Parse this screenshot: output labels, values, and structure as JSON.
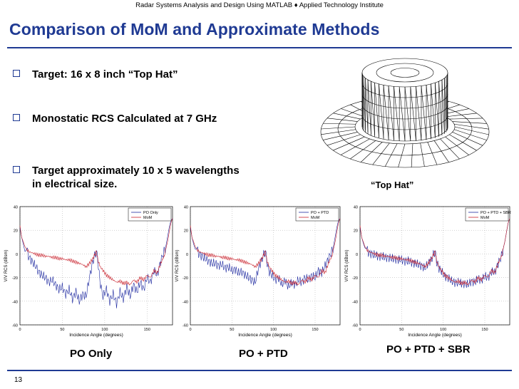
{
  "header": "Radar Systems Analysis and Design Using MATLAB ♦ Applied Technology Institute",
  "title": "Comparison of MoM and Approximate Methods",
  "bullets": [
    "Target: 16 x 8 inch “Top Hat”",
    "Monostatic RCS Calculated at 7 GHz",
    "Target approximately 10 x 5 wavelengths in electrical size."
  ],
  "tophat_caption": "“Top Hat”",
  "page_number": "13",
  "colors": {
    "title": "#1f3a93",
    "po": "#1f2aa0",
    "mom": "#c8202a"
  },
  "plot_captions": [
    "PO Only",
    "PO + PTD",
    "PO + PTD + SBR"
  ],
  "chart_data": [
    {
      "type": "line",
      "xlabel": "Incidence Angle (degrees)",
      "ylabel": "V/V RCS (dBsm)",
      "xlim": [
        0,
        180
      ],
      "ylim": [
        -60,
        40
      ],
      "xticks": [
        0,
        50,
        100,
        150
      ],
      "yticks": [
        40,
        20,
        0,
        -20,
        -40,
        -60
      ],
      "legend_position": "top-right",
      "series": [
        {
          "name": "PO Only",
          "color": "#1f2aa0",
          "x": [
            0,
            2,
            4,
            6,
            8,
            10,
            14,
            18,
            22,
            26,
            30,
            34,
            38,
            42,
            46,
            50,
            54,
            58,
            62,
            66,
            70,
            74,
            78,
            82,
            86,
            88,
            90,
            92,
            94,
            98,
            102,
            106,
            110,
            114,
            118,
            122,
            126,
            130,
            134,
            138,
            142,
            146,
            150,
            154,
            158,
            162,
            166,
            170,
            172,
            174,
            176,
            178,
            180
          ],
          "y": [
            22,
            14,
            8,
            2,
            4,
            -2,
            -6,
            -10,
            -15,
            -18,
            -20,
            -24,
            -22,
            -26,
            -30,
            -28,
            -34,
            -30,
            -38,
            -32,
            -40,
            -34,
            -36,
            -20,
            -6,
            -2,
            2,
            -6,
            -22,
            -36,
            -30,
            -40,
            -34,
            -42,
            -32,
            -38,
            -28,
            -36,
            -26,
            -32,
            -24,
            -30,
            -20,
            -24,
            -14,
            -18,
            -6,
            2,
            6,
            14,
            22,
            28,
            30
          ]
        },
        {
          "name": "MoM",
          "color": "#c8202a",
          "x": [
            0,
            2,
            4,
            6,
            8,
            10,
            14,
            18,
            22,
            26,
            30,
            34,
            38,
            42,
            46,
            50,
            54,
            58,
            62,
            66,
            70,
            74,
            78,
            82,
            86,
            88,
            90,
            92,
            94,
            98,
            102,
            106,
            110,
            114,
            118,
            122,
            126,
            130,
            134,
            138,
            142,
            146,
            150,
            154,
            158,
            162,
            166,
            170,
            172,
            174,
            176,
            178,
            180
          ],
          "y": [
            24,
            14,
            10,
            6,
            4,
            2,
            1,
            0,
            -1,
            -1,
            -2,
            -2,
            -3,
            -3,
            -4,
            -4,
            -5,
            -5,
            -6,
            -7,
            -8,
            -9,
            -11,
            -8,
            -4,
            -1,
            2,
            -5,
            -10,
            -14,
            -18,
            -20,
            -22,
            -24,
            -23,
            -25,
            -24,
            -26,
            -22,
            -24,
            -20,
            -22,
            -18,
            -20,
            -14,
            -16,
            -8,
            -2,
            4,
            10,
            18,
            26,
            30
          ]
        }
      ]
    },
    {
      "type": "line",
      "xlabel": "Incidence Angle (degrees)",
      "ylabel": "V/V RCS (dBsm)",
      "xlim": [
        0,
        180
      ],
      "ylim": [
        -60,
        40
      ],
      "xticks": [
        0,
        50,
        100,
        150
      ],
      "yticks": [
        40,
        20,
        0,
        -20,
        -40,
        -60
      ],
      "legend_position": "top-right",
      "series": [
        {
          "name": "PO + PTD",
          "color": "#1f2aa0",
          "x": [
            0,
            2,
            4,
            6,
            8,
            10,
            14,
            18,
            22,
            26,
            30,
            34,
            38,
            42,
            46,
            50,
            54,
            58,
            62,
            66,
            70,
            74,
            78,
            82,
            86,
            88,
            90,
            92,
            94,
            98,
            102,
            106,
            110,
            114,
            118,
            122,
            126,
            130,
            134,
            138,
            142,
            146,
            150,
            154,
            158,
            162,
            166,
            170,
            172,
            174,
            176,
            178,
            180
          ],
          "y": [
            22,
            14,
            8,
            4,
            4,
            0,
            -2,
            -4,
            -6,
            -8,
            -8,
            -10,
            -9,
            -12,
            -11,
            -14,
            -13,
            -16,
            -15,
            -18,
            -20,
            -22,
            -24,
            -12,
            -4,
            -1,
            2,
            -6,
            -14,
            -18,
            -22,
            -20,
            -26,
            -22,
            -28,
            -24,
            -26,
            -22,
            -24,
            -20,
            -22,
            -18,
            -20,
            -14,
            -16,
            -10,
            -4,
            2,
            6,
            14,
            22,
            28,
            30
          ]
        },
        {
          "name": "MoM",
          "color": "#c8202a",
          "x": [
            0,
            2,
            4,
            6,
            8,
            10,
            14,
            18,
            22,
            26,
            30,
            34,
            38,
            42,
            46,
            50,
            54,
            58,
            62,
            66,
            70,
            74,
            78,
            82,
            86,
            88,
            90,
            92,
            94,
            98,
            102,
            106,
            110,
            114,
            118,
            122,
            126,
            130,
            134,
            138,
            142,
            146,
            150,
            154,
            158,
            162,
            166,
            170,
            172,
            174,
            176,
            178,
            180
          ],
          "y": [
            24,
            14,
            10,
            6,
            4,
            2,
            1,
            0,
            -1,
            -1,
            -2,
            -2,
            -3,
            -3,
            -4,
            -4,
            -5,
            -5,
            -6,
            -7,
            -8,
            -9,
            -11,
            -8,
            -4,
            -1,
            2,
            -5,
            -10,
            -14,
            -18,
            -20,
            -22,
            -24,
            -23,
            -25,
            -24,
            -26,
            -22,
            -24,
            -20,
            -22,
            -18,
            -20,
            -14,
            -16,
            -8,
            -2,
            4,
            10,
            18,
            26,
            30
          ]
        }
      ]
    },
    {
      "type": "line",
      "xlabel": "Incidence Angle (degrees)",
      "ylabel": "V/V RCS (dBsm)",
      "xlim": [
        0,
        180
      ],
      "ylim": [
        -60,
        40
      ],
      "xticks": [
        0,
        50,
        100,
        150
      ],
      "yticks": [
        40,
        20,
        0,
        -20,
        -40,
        -60
      ],
      "legend_position": "top-right",
      "series": [
        {
          "name": "PO + PTD + SBR",
          "color": "#1f2aa0",
          "x": [
            0,
            2,
            4,
            6,
            8,
            10,
            14,
            18,
            22,
            26,
            30,
            34,
            38,
            42,
            46,
            50,
            54,
            58,
            62,
            66,
            70,
            74,
            78,
            82,
            86,
            88,
            90,
            92,
            94,
            98,
            102,
            106,
            110,
            114,
            118,
            122,
            126,
            130,
            134,
            138,
            142,
            146,
            150,
            154,
            158,
            162,
            166,
            170,
            172,
            174,
            176,
            178,
            180
          ],
          "y": [
            22,
            14,
            9,
            5,
            4,
            1,
            0,
            -1,
            -2,
            -2,
            -3,
            -3,
            -4,
            -4,
            -5,
            -5,
            -6,
            -6,
            -7,
            -8,
            -9,
            -10,
            -12,
            -8,
            -4,
            -1,
            2,
            -6,
            -11,
            -15,
            -19,
            -20,
            -23,
            -24,
            -24,
            -25,
            -25,
            -26,
            -23,
            -24,
            -21,
            -22,
            -19,
            -20,
            -15,
            -16,
            -8,
            -2,
            4,
            10,
            18,
            26,
            30
          ]
        },
        {
          "name": "MoM",
          "color": "#c8202a",
          "x": [
            0,
            2,
            4,
            6,
            8,
            10,
            14,
            18,
            22,
            26,
            30,
            34,
            38,
            42,
            46,
            50,
            54,
            58,
            62,
            66,
            70,
            74,
            78,
            82,
            86,
            88,
            90,
            92,
            94,
            98,
            102,
            106,
            110,
            114,
            118,
            122,
            126,
            130,
            134,
            138,
            142,
            146,
            150,
            154,
            158,
            162,
            166,
            170,
            172,
            174,
            176,
            178,
            180
          ],
          "y": [
            24,
            14,
            10,
            6,
            4,
            2,
            1,
            0,
            -1,
            -1,
            -2,
            -2,
            -3,
            -3,
            -4,
            -4,
            -5,
            -5,
            -6,
            -7,
            -8,
            -9,
            -11,
            -8,
            -4,
            -1,
            2,
            -5,
            -10,
            -14,
            -18,
            -20,
            -22,
            -24,
            -23,
            -25,
            -24,
            -26,
            -22,
            -24,
            -20,
            -22,
            -18,
            -20,
            -14,
            -16,
            -8,
            -2,
            4,
            10,
            18,
            26,
            30
          ]
        }
      ]
    }
  ]
}
